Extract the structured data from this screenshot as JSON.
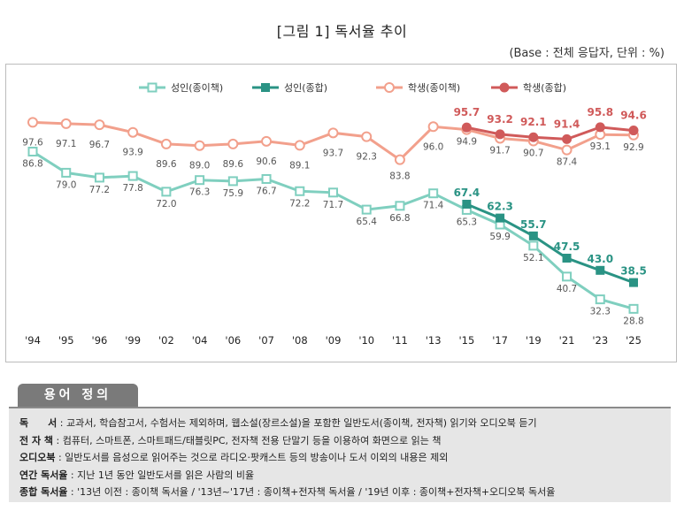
{
  "header": {
    "title": "[그림 1] 독서율 추이",
    "base_note": "(Base : 전체 응답자, 단위 : %)"
  },
  "chart_data": {
    "type": "line",
    "title": "[그림 1] 독서율 추이",
    "xlabel": "",
    "ylabel": "",
    "ylim": [
      20,
      100
    ],
    "grid": false,
    "legend_position": "top",
    "categories": [
      "'94",
      "'95",
      "'96",
      "'99",
      "'02",
      "'04",
      "'06",
      "'07",
      "'08",
      "'09",
      "'10",
      "'11",
      "'13",
      "'15",
      "'17",
      "'19",
      "'21",
      "'23",
      "'25"
    ],
    "series": [
      {
        "name": "성인(종이책)",
        "color": "#7fcfbf",
        "marker": "hollow-square",
        "values": [
          86.8,
          79.0,
          77.2,
          77.8,
          72.0,
          76.3,
          75.9,
          76.7,
          72.2,
          71.7,
          65.4,
          66.8,
          71.4,
          65.3,
          59.9,
          52.1,
          40.7,
          32.3,
          28.8
        ],
        "labels": [
          "86.8",
          "79.0",
          "77.2",
          "77.8",
          "72.0",
          "76.3",
          "75.9",
          "76.7",
          "72.2",
          "71.7",
          "65.4",
          "66.8",
          "71.4",
          "65.3",
          "59.9",
          "52.1",
          "40.7",
          "32.3",
          "28.8"
        ]
      },
      {
        "name": "성인(종합)",
        "color": "#2a9384",
        "marker": "filled-square",
        "values": [
          null,
          null,
          null,
          null,
          null,
          null,
          null,
          null,
          null,
          null,
          null,
          null,
          null,
          67.4,
          62.3,
          55.7,
          47.5,
          43.0,
          38.5
        ],
        "labels": [
          null,
          null,
          null,
          null,
          null,
          null,
          null,
          null,
          null,
          null,
          null,
          null,
          null,
          "67.4",
          "62.3",
          "55.7",
          "47.5",
          "43.0",
          "38.5"
        ]
      },
      {
        "name": "학생(종이책)",
        "color": "#f2a08c",
        "marker": "hollow-circle",
        "values": [
          97.6,
          97.1,
          96.7,
          93.9,
          89.6,
          89.0,
          89.6,
          90.6,
          89.1,
          93.7,
          92.3,
          83.8,
          96.0,
          94.9,
          91.7,
          90.7,
          87.4,
          93.1,
          92.9
        ],
        "labels": [
          "97.6",
          "97.1",
          "96.7",
          "93.9",
          "89.6",
          "89.0",
          "89.6",
          "90.6",
          "89.1",
          "93.7",
          "92.3",
          "83.8",
          "96.0",
          "94.9",
          "91.7",
          "90.7",
          "87.4",
          "93.1",
          "92.9"
        ]
      },
      {
        "name": "학생(종합)",
        "color": "#d05a5a",
        "marker": "filled-circle",
        "values": [
          null,
          null,
          null,
          null,
          null,
          null,
          null,
          null,
          null,
          null,
          null,
          null,
          null,
          95.7,
          93.2,
          92.1,
          91.4,
          95.8,
          94.6
        ],
        "labels": [
          null,
          null,
          null,
          null,
          null,
          null,
          null,
          null,
          null,
          null,
          null,
          null,
          null,
          "95.7",
          "93.2",
          "92.1",
          "91.4",
          "95.8",
          "94.6"
        ]
      }
    ]
  },
  "definitions": {
    "heading": "용어 정의",
    "rows": [
      {
        "term": "독　　서",
        "desc": " : 교과서, 학습참고서, 수험서는 제외하며, 웹소설(장르소설)을 포함한 일반도서(종이책, 전자책) 읽기와 오디오북 듣기"
      },
      {
        "term": "전 자 책",
        "desc": " : 컴퓨터, 스마트폰, 스마트패드/태블릿PC, 전자책 전용 단말기 등을 이용하여 화면으로 읽는 책"
      },
      {
        "term": "오디오북",
        "desc": " : 일반도서를 음성으로 읽어주는 것으로 라디오·팟캐스트 등의 방송이나 도서 이외의 내용은 제외"
      },
      {
        "term": "연간 독서율",
        "desc": " : 지난 1년 동안 일반도서를 읽은 사람의 비율"
      },
      {
        "term": "종합 독서율",
        "desc": " : '13년 이전 : 종이책 독서율 / '13년~'17년 : 종이책+전자책 독서율 / '19년 이후 : 종이책+전자책+오디오북 독서율"
      }
    ]
  }
}
